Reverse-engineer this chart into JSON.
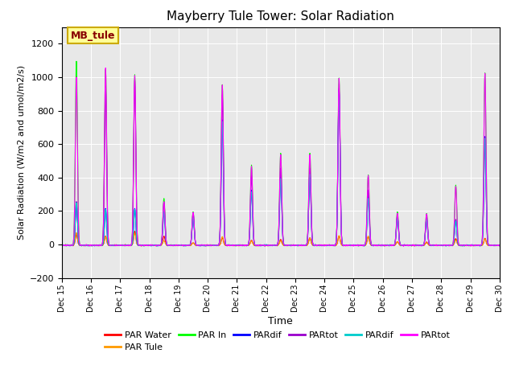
{
  "title": "Mayberry Tule Tower: Solar Radiation",
  "xlabel": "Time",
  "ylabel": "Solar Radiation (W/m2 and umol/m2/s)",
  "ylim": [
    -200,
    1300
  ],
  "yticks": [
    -200,
    0,
    200,
    400,
    600,
    800,
    1000,
    1200
  ],
  "xlim": [
    15,
    30
  ],
  "xtick_labels": [
    "Dec 15",
    "Dec 16",
    "Dec 17",
    "Dec 18",
    "Dec 19",
    "Dec 20",
    "Dec 21",
    "Dec 22",
    "Dec 23",
    "Dec 24",
    "Dec 25",
    "Dec 26",
    "Dec 27",
    "Dec 28",
    "Dec 29",
    "Dec 30"
  ],
  "xtick_positions": [
    15,
    16,
    17,
    18,
    19,
    20,
    21,
    22,
    23,
    24,
    25,
    26,
    27,
    28,
    29,
    30
  ],
  "legend_entries": [
    "PAR Water",
    "PAR Tule",
    "PAR In",
    "PARdif",
    "PARtot",
    "PARdif",
    "PARtot"
  ],
  "legend_colors": [
    "#ff0000",
    "#ff9900",
    "#00ff00",
    "#0000ff",
    "#9900cc",
    "#00cccc",
    "#ff00ff"
  ],
  "bg_color": "#e8e8e8",
  "annotation_text": "MB_tule",
  "annotation_color": "#880000",
  "annotation_bg": "#ffff99",
  "annotation_border": "#ccaa00",
  "figsize": [
    6.4,
    4.8
  ],
  "dpi": 100
}
